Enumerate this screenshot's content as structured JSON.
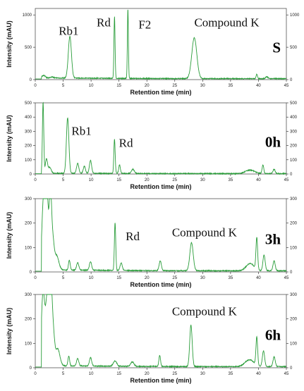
{
  "colors": {
    "trace": "#2a9d3a",
    "axis": "#222222",
    "frame": "#555555"
  },
  "chart_data": [
    {
      "type": "line",
      "sample_label": "S",
      "xlabel": "Retention time (min)",
      "ylabel": "Intensity (mAU)",
      "xlim": [
        0,
        45
      ],
      "ylim": [
        0,
        1100
      ],
      "x_ticks": [
        0,
        5,
        10,
        15,
        20,
        25,
        30,
        35,
        40,
        45
      ],
      "y_ticks": [
        0,
        500,
        1000
      ],
      "baseline": 25,
      "peaks": [
        {
          "rt": 1.5,
          "height": 40,
          "width": 0.3
        },
        {
          "rt": 3.0,
          "height": 15,
          "width": 0.3
        },
        {
          "rt": 6.2,
          "height": 640,
          "width": 0.28
        },
        {
          "rt": 14.2,
          "height": 950,
          "width": 0.1
        },
        {
          "rt": 16.6,
          "height": 1070,
          "width": 0.09
        },
        {
          "rt": 28.5,
          "height": 630,
          "width": 0.45
        },
        {
          "rt": 39.7,
          "height": 70,
          "width": 0.12
        },
        {
          "rt": 41.5,
          "height": 30,
          "width": 0.2
        }
      ],
      "annotations": [
        {
          "text": "Rb1",
          "x": 4.2,
          "y": 690
        },
        {
          "text": "Rd",
          "x": 11.0,
          "y": 820
        },
        {
          "text": "F2",
          "x": 18.5,
          "y": 790
        },
        {
          "text": "Compound K",
          "x": 28.5,
          "y": 820
        }
      ]
    },
    {
      "type": "line",
      "sample_label": "0h",
      "xlabel": "Retention time (min)",
      "ylabel": "Intensity (mAU)",
      "xlim": [
        0,
        45
      ],
      "ylim": [
        0,
        500
      ],
      "x_ticks": [
        0,
        5,
        10,
        15,
        20,
        25,
        30,
        35,
        40,
        45
      ],
      "y_ticks": [
        0,
        100,
        200,
        300,
        400,
        500
      ],
      "baseline": 5,
      "peaks": [
        {
          "rt": 1.4,
          "height": 500,
          "width": 0.12
        },
        {
          "rt": 2.0,
          "height": 100,
          "width": 0.2
        },
        {
          "rt": 2.6,
          "height": 40,
          "width": 0.25
        },
        {
          "rt": 5.8,
          "height": 390,
          "width": 0.22
        },
        {
          "rt": 7.6,
          "height": 70,
          "width": 0.2
        },
        {
          "rt": 8.8,
          "height": 50,
          "width": 0.2
        },
        {
          "rt": 9.9,
          "height": 90,
          "width": 0.2
        },
        {
          "rt": 14.2,
          "height": 240,
          "width": 0.12
        },
        {
          "rt": 15.1,
          "height": 60,
          "width": 0.15
        },
        {
          "rt": 17.5,
          "height": 30,
          "width": 0.25
        },
        {
          "rt": 38.5,
          "height": 25,
          "width": 0.8
        },
        {
          "rt": 40.8,
          "height": 60,
          "width": 0.15
        },
        {
          "rt": 42.8,
          "height": 30,
          "width": 0.2
        }
      ],
      "annotations": [
        {
          "text": "Rb1",
          "x": 6.5,
          "y": 275
        },
        {
          "text": "Rd",
          "x": 15.0,
          "y": 190
        }
      ]
    },
    {
      "type": "line",
      "sample_label": "3h",
      "xlabel": "Retention time (min)",
      "ylabel": "Intensity (mAU)",
      "xlim": [
        0,
        45
      ],
      "ylim": [
        0,
        300
      ],
      "x_ticks": [
        0,
        5,
        10,
        15,
        20,
        25,
        30,
        35,
        40,
        45
      ],
      "y_ticks": [
        0,
        100,
        200,
        300
      ],
      "baseline": 8,
      "peaks": [
        {
          "rt": 1.5,
          "height": 300,
          "width": 0.3
        },
        {
          "rt": 2.1,
          "height": 300,
          "width": 0.25
        },
        {
          "rt": 2.7,
          "height": 300,
          "width": 0.2
        },
        {
          "rt": 3.1,
          "height": 120,
          "width": 0.25
        },
        {
          "rt": 3.8,
          "height": 60,
          "width": 0.4
        },
        {
          "rt": 6.1,
          "height": 40,
          "width": 0.15
        },
        {
          "rt": 7.6,
          "height": 30,
          "width": 0.2
        },
        {
          "rt": 9.9,
          "height": 35,
          "width": 0.2
        },
        {
          "rt": 14.3,
          "height": 195,
          "width": 0.12
        },
        {
          "rt": 15.4,
          "height": 30,
          "width": 0.2
        },
        {
          "rt": 22.4,
          "height": 40,
          "width": 0.2
        },
        {
          "rt": 28.0,
          "height": 115,
          "width": 0.3
        },
        {
          "rt": 38.5,
          "height": 30,
          "width": 0.7
        },
        {
          "rt": 39.7,
          "height": 130,
          "width": 0.15
        },
        {
          "rt": 41.0,
          "height": 65,
          "width": 0.2
        },
        {
          "rt": 42.8,
          "height": 40,
          "width": 0.2
        }
      ],
      "annotations": [
        {
          "text": "Rd",
          "x": 16.2,
          "y": 130
        },
        {
          "text": "Compound K",
          "x": 24.5,
          "y": 145
        }
      ]
    },
    {
      "type": "line",
      "sample_label": "6h",
      "xlabel": "Retention time (min)",
      "ylabel": "Intensity (mAU)",
      "xlim": [
        0,
        45
      ],
      "ylim": [
        0,
        300
      ],
      "x_ticks": [
        0,
        5,
        10,
        15,
        20,
        25,
        30,
        35,
        40,
        45
      ],
      "y_ticks": [
        0,
        100,
        200,
        300
      ],
      "baseline": 8,
      "peaks": [
        {
          "rt": 1.4,
          "height": 300,
          "width": 0.3
        },
        {
          "rt": 2.2,
          "height": 300,
          "width": 0.3
        },
        {
          "rt": 2.8,
          "height": 280,
          "width": 0.22
        },
        {
          "rt": 3.2,
          "height": 130,
          "width": 0.25
        },
        {
          "rt": 4.0,
          "height": 70,
          "width": 0.4
        },
        {
          "rt": 6.0,
          "height": 40,
          "width": 0.15
        },
        {
          "rt": 7.6,
          "height": 30,
          "width": 0.2
        },
        {
          "rt": 9.9,
          "height": 35,
          "width": 0.2
        },
        {
          "rt": 14.3,
          "height": 22,
          "width": 0.3
        },
        {
          "rt": 17.4,
          "height": 18,
          "width": 0.3
        },
        {
          "rt": 22.3,
          "height": 45,
          "width": 0.15
        },
        {
          "rt": 27.9,
          "height": 170,
          "width": 0.22
        },
        {
          "rt": 38.4,
          "height": 28,
          "width": 0.8
        },
        {
          "rt": 39.7,
          "height": 115,
          "width": 0.15
        },
        {
          "rt": 40.9,
          "height": 65,
          "width": 0.2
        },
        {
          "rt": 42.8,
          "height": 40,
          "width": 0.2
        }
      ],
      "annotations": [
        {
          "text": "Compound K",
          "x": 24.5,
          "y": 215
        }
      ]
    }
  ]
}
